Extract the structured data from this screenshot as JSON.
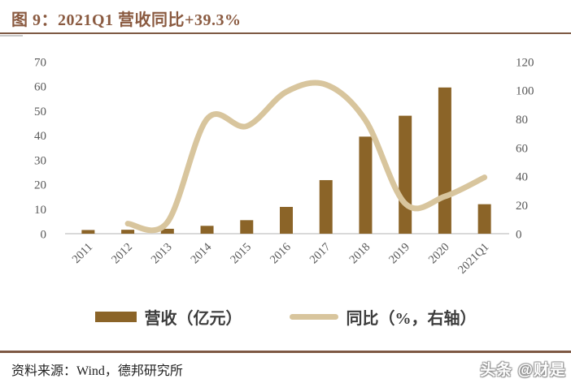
{
  "header": {
    "title": "图 9：2021Q1 营收同比+39.3%"
  },
  "legend": [
    {
      "label": "营收（亿元）",
      "swatch": "bar"
    },
    {
      "label": "同比（%，右轴）",
      "swatch": "line"
    }
  ],
  "footer": {
    "source": "资料来源：Wind，德邦研究所",
    "watermark": "头条 @财是"
  },
  "colors": {
    "bar": "#8B6428",
    "line": "#D8C59D",
    "title": "#8A5A40",
    "divider": "#7D5843",
    "axis_text": "#595959",
    "axis_line": "#D9D9D9",
    "legend_text": "#3D3D3D",
    "source_text": "#222222"
  },
  "chart_data": {
    "type": "bar+line",
    "title": "图 9：2021Q1 营收同比+39.3%",
    "categories": [
      "2011",
      "2012",
      "2013",
      "2014",
      "2015",
      "2016",
      "2017",
      "2018",
      "2019",
      "2020",
      "2021Q1"
    ],
    "series": [
      {
        "name": "营收（亿元）",
        "type": "bar",
        "axis": "left",
        "values": [
          1.5,
          1.6,
          2.0,
          3.2,
          5.5,
          10.9,
          21.8,
          39.5,
          48.0,
          59.5,
          12.0
        ]
      },
      {
        "name": "同比（%，右轴）",
        "type": "line",
        "axis": "right",
        "values": [
          null,
          7,
          8,
          80,
          75,
          99,
          104,
          79,
          21,
          26,
          39.3
        ]
      }
    ],
    "left_axis": {
      "min": 0,
      "max": 70,
      "step": 10,
      "ticks": [
        0,
        10,
        20,
        30,
        40,
        50,
        60,
        70
      ]
    },
    "right_axis": {
      "min": 0,
      "max": 120,
      "step": 20,
      "ticks": [
        0,
        20,
        40,
        60,
        80,
        100,
        120
      ]
    },
    "grid": false,
    "legend_position": "bottom"
  }
}
